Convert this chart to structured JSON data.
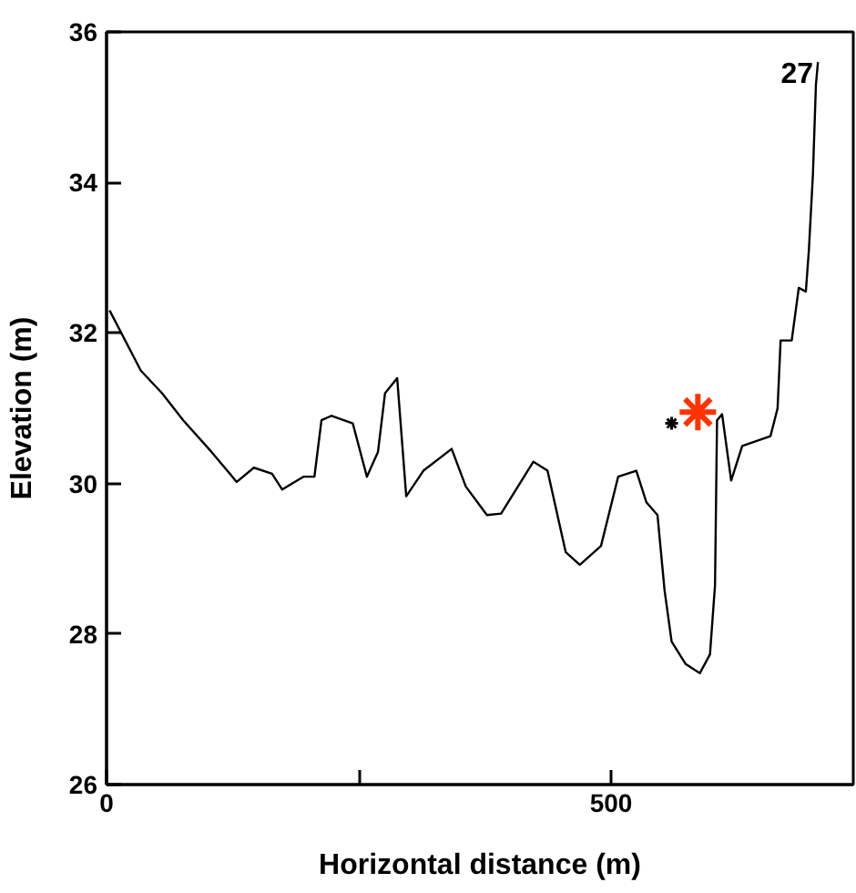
{
  "chart_data": {
    "type": "line",
    "xlabel": "Horizontal distance (m)",
    "ylabel": "Elevation (m)",
    "xlim": [
      0,
      740
    ],
    "ylim": [
      26,
      36
    ],
    "xticks": [
      0,
      {
        "value": 250,
        "label": null
      },
      500
    ],
    "yticks": [
      26,
      28,
      30,
      32,
      34,
      36
    ],
    "grid": false,
    "line_style": "solid",
    "marker": "none",
    "annotations": [
      "27"
    ],
    "series": [
      {
        "color": "#000000",
        "x": [
          3,
          34,
          55,
          76,
          104,
          129,
          146,
          164,
          174,
          195,
          206,
          213,
          223,
          244,
          258,
          269,
          276,
          288,
          297,
          314,
          342,
          356,
          377,
          391,
          423,
          437,
          455,
          469,
          490,
          507,
          525,
          535,
          546,
          553,
          560,
          574,
          588,
          598,
          603,
          605,
          610,
          619,
          630,
          658,
          665,
          668,
          679,
          686,
          693,
          696,
          700,
          703,
          705
        ],
        "values": [
          32.3,
          31.5,
          31.2,
          30.84,
          30.42,
          30.02,
          30.21,
          30.13,
          29.92,
          30.09,
          30.09,
          30.84,
          30.9,
          30.8,
          30.09,
          30.42,
          31.2,
          31.4,
          29.83,
          30.17,
          30.46,
          29.96,
          29.58,
          29.6,
          30.29,
          30.17,
          29.09,
          28.92,
          29.17,
          30.09,
          30.17,
          29.75,
          29.58,
          28.58,
          27.9,
          27.6,
          27.48,
          27.73,
          28.65,
          30.84,
          30.92,
          30.04,
          30.5,
          30.63,
          31.0,
          31.9,
          31.9,
          32.6,
          32.55,
          33.1,
          34.1,
          35.3,
          35.6
        ]
      },
      {
        "type": "scatter",
        "marker": "cross",
        "color": "#000000",
        "x": [
          560
        ],
        "values": [
          30.8
        ]
      },
      {
        "type": "scatter",
        "marker": "cross",
        "color": "#ff3300",
        "x": [
          586
        ],
        "values": [
          30.95
        ]
      }
    ]
  }
}
